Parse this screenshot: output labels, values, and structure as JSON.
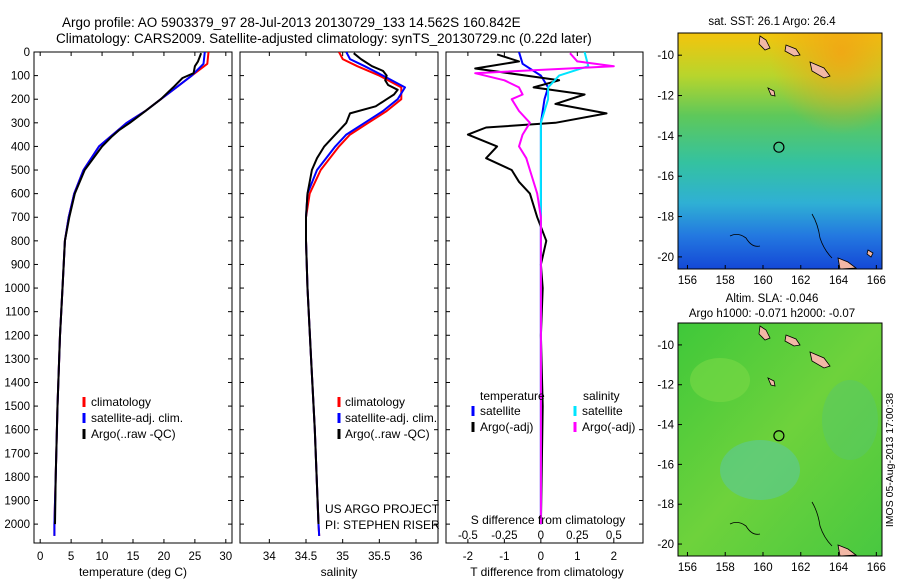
{
  "header": {
    "line1": "Argo profile: AO 5903379_97 28-Jul-2013 20130729_133 14.562S 160.842E",
    "line2": "Climatology: CARS2009. Satellite-adjusted climatology: synTS_20130729.nc (0.22d later)"
  },
  "credits": {
    "project": "US ARGO PROJECT",
    "pi": "PI: STEPHEN RISER",
    "side_stamp": "IMOS 05-Aug-2013 17:00:38"
  },
  "colors": {
    "climatology": "#ff0000",
    "satellite": "#0000ff",
    "argo": "#000000",
    "sal_sat": "#00e5ff",
    "sal_argo": "#ff00ff"
  },
  "chart_data": [
    {
      "type": "line",
      "id": "temperature",
      "xlabel": "temperature (deg C)",
      "xlim": [
        -1,
        31
      ],
      "xticks": [
        0,
        5,
        10,
        15,
        20,
        25,
        30
      ],
      "ylim": [
        2080,
        0
      ],
      "yticks": [
        0,
        100,
        200,
        300,
        400,
        500,
        600,
        700,
        800,
        900,
        1000,
        1100,
        1200,
        1300,
        1400,
        1500,
        1600,
        1700,
        1800,
        1900,
        2000
      ],
      "legend": [
        "climatology",
        "satellite-adj. clim.",
        "Argo(..raw -QC)"
      ],
      "series": [
        {
          "name": "climatology",
          "color": "#ff0000",
          "depth": [
            0,
            50,
            100,
            150,
            200,
            250,
            300,
            400,
            500,
            600,
            700,
            800,
            1000,
            1200,
            1500,
            1800,
            2000,
            2050
          ],
          "values": [
            27.2,
            27.0,
            24.5,
            22.0,
            19.5,
            17.0,
            14.0,
            9.5,
            7.0,
            5.5,
            4.6,
            4.0,
            3.6,
            3.2,
            2.8,
            2.5,
            2.3,
            2.3
          ]
        },
        {
          "name": "satellite-adj. clim.",
          "color": "#0000ff",
          "depth": [
            0,
            50,
            100,
            150,
            200,
            250,
            300,
            400,
            500,
            600,
            700,
            800,
            1000,
            1200,
            1500,
            1800,
            2000,
            2050
          ],
          "values": [
            26.6,
            26.4,
            24.5,
            22.0,
            19.5,
            17.0,
            14.0,
            9.5,
            7.0,
            5.5,
            4.6,
            4.0,
            3.6,
            3.2,
            2.8,
            2.5,
            2.3,
            2.3
          ]
        },
        {
          "name": "Argo(..raw -QC)",
          "color": "#000000",
          "depth": [
            5,
            20,
            40,
            60,
            90,
            110,
            150,
            200,
            260,
            300,
            330,
            360,
            400,
            500,
            600,
            700,
            800,
            1000,
            1200,
            1500,
            1800,
            2000
          ],
          "values": [
            26.0,
            25.8,
            25.5,
            25.0,
            24.8,
            23.0,
            21.5,
            19.5,
            16.5,
            14.5,
            12.8,
            11.5,
            10.0,
            7.2,
            5.6,
            4.7,
            4.0,
            3.6,
            3.2,
            2.8,
            2.5,
            2.4
          ]
        }
      ]
    },
    {
      "type": "line",
      "id": "salinity",
      "xlabel": "salinity",
      "xlim": [
        33.6,
        36.3
      ],
      "xticks": [
        34,
        34.5,
        35,
        35.5,
        36
      ],
      "ylim": [
        2080,
        0
      ],
      "legend": [
        "climatology",
        "satellite-adj. clim.",
        "Argo(..raw -QC)"
      ],
      "series": [
        {
          "name": "climatology",
          "color": "#ff0000",
          "depth": [
            0,
            30,
            60,
            100,
            150,
            200,
            250,
            300,
            350,
            400,
            500,
            600,
            700,
            800,
            1000,
            1300,
            1600,
            2000,
            2050
          ],
          "values": [
            34.95,
            35.0,
            35.2,
            35.5,
            35.8,
            35.8,
            35.6,
            35.35,
            35.1,
            34.95,
            34.7,
            34.55,
            34.5,
            34.5,
            34.52,
            34.57,
            34.62,
            34.67,
            34.68
          ]
        },
        {
          "name": "satellite-adj. clim.",
          "color": "#0000ff",
          "depth": [
            0,
            30,
            60,
            100,
            150,
            200,
            250,
            300,
            350,
            400,
            500,
            600,
            700,
            800,
            1000,
            1300,
            1600,
            2000,
            2050
          ],
          "values": [
            35.05,
            35.1,
            35.3,
            35.55,
            35.85,
            35.75,
            35.55,
            35.3,
            35.05,
            34.9,
            34.65,
            34.52,
            34.5,
            34.5,
            34.52,
            34.57,
            34.62,
            34.67,
            34.68
          ]
        },
        {
          "name": "Argo(..raw -QC)",
          "color": "#000000",
          "depth": [
            5,
            30,
            60,
            80,
            100,
            120,
            140,
            160,
            180,
            200,
            230,
            260,
            300,
            350,
            400,
            450,
            500,
            600,
            700,
            800,
            1000,
            1300,
            1600,
            2000
          ],
          "values": [
            35.15,
            35.25,
            35.4,
            35.55,
            35.6,
            35.58,
            35.62,
            35.75,
            35.7,
            35.6,
            35.45,
            35.1,
            35.05,
            34.9,
            34.75,
            34.65,
            34.58,
            34.52,
            34.5,
            34.5,
            34.52,
            34.57,
            34.62,
            34.67
          ]
        }
      ]
    },
    {
      "type": "line",
      "id": "difference",
      "xlabel": "T difference from climatology",
      "xlabel_top": "S difference from climatology",
      "xlim": [
        -2.6,
        2.8
      ],
      "xticks": [
        -2,
        -1,
        0,
        1,
        2
      ],
      "xticks_top": [
        "-0.5",
        "-0.25",
        "0",
        "0.25",
        "0.5"
      ],
      "xticks_top_pos": [
        -2,
        -1,
        0,
        1,
        2
      ],
      "ylim": [
        2080,
        0
      ],
      "legend_titles": [
        "temperature",
        "salinity"
      ],
      "legend": [
        "satellite",
        "Argo(-adj)",
        "satellite",
        "Argo(-adj)"
      ],
      "series": [
        {
          "name": "temperature satellite",
          "color": "#0000ff",
          "depth": [
            0,
            50,
            100,
            150,
            200,
            300,
            400,
            600,
            800,
            1000,
            1500,
            2000
          ],
          "values": [
            -0.6,
            -0.5,
            0,
            0.2,
            0.1,
            0,
            0,
            0,
            0,
            0,
            0,
            0
          ]
        },
        {
          "name": "temperature Argo(-adj)",
          "color": "#000000",
          "depth": [
            10,
            40,
            70,
            100,
            120,
            150,
            180,
            220,
            260,
            300,
            320,
            350,
            400,
            450,
            500,
            550,
            600,
            700,
            800,
            900,
            1000,
            1200,
            1500,
            2000
          ],
          "values": [
            -1.2,
            -0.6,
            -1.8,
            -0.4,
            0.5,
            -0.2,
            1.2,
            0.4,
            1.8,
            0.4,
            -1.5,
            -2.0,
            -1.2,
            -1.5,
            -0.8,
            -0.6,
            -0.3,
            -0.1,
            0.15,
            0,
            0.05,
            0,
            0.05,
            0
          ]
        },
        {
          "name": "salinity satellite",
          "color": "#00e5ff",
          "depth": [
            0,
            60,
            100,
            150,
            200,
            250,
            300,
            400,
            600,
            1000,
            1500,
            2000
          ],
          "values": [
            1.2,
            1.3,
            0.5,
            0.2,
            0.2,
            0.1,
            0,
            0,
            0,
            0,
            0,
            0
          ]
        },
        {
          "name": "salinity Argo(-adj)",
          "color": "#ff00ff",
          "depth": [
            5,
            40,
            60,
            90,
            120,
            150,
            180,
            200,
            250,
            300,
            350,
            400,
            450,
            500,
            600,
            700,
            1000,
            2000
          ],
          "values": [
            0.8,
            1.0,
            2.0,
            -1.8,
            -1.0,
            -0.6,
            -0.5,
            -0.8,
            -0.6,
            -0.3,
            -0.5,
            -0.6,
            -0.4,
            -0.3,
            -0.1,
            0,
            0,
            0
          ]
        }
      ]
    },
    {
      "type": "heatmap",
      "id": "sst_map",
      "title": "sat. SST: 26.1  Argo: 26.4",
      "xlim": [
        155.5,
        166.3
      ],
      "ylim": [
        -20.6,
        -8.9
      ],
      "xticks": [
        156,
        158,
        160,
        162,
        164,
        166
      ],
      "yticks": [
        -10,
        -12,
        -14,
        -16,
        -18,
        -20
      ],
      "marker": {
        "lon": 160.842,
        "lat": -14.562
      }
    },
    {
      "type": "heatmap",
      "id": "sla_map",
      "title": "Altim. SLA: -0.046",
      "subtitle": "Argo h1000: -0.071  h2000: -0.07",
      "xlim": [
        155.5,
        166.3
      ],
      "ylim": [
        -20.6,
        -8.9
      ],
      "xticks": [
        156,
        158,
        160,
        162,
        164,
        166
      ],
      "yticks": [
        -10,
        -12,
        -14,
        -16,
        -18,
        -20
      ],
      "marker": {
        "lon": 160.842,
        "lat": -14.562
      }
    }
  ]
}
